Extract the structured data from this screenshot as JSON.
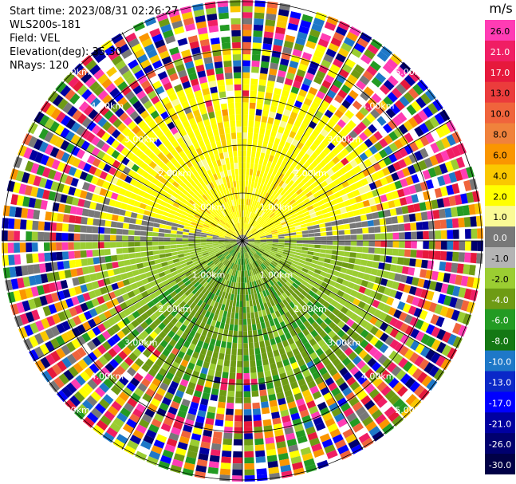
{
  "info": {
    "start_time": "Start time: 2023/08/31 02:26:27",
    "station": "WLS200s-181",
    "field": "Field: VEL",
    "elevation": "Elevation(deg): 35.30",
    "nrays": "NRays: 120"
  },
  "colorbar": {
    "unit": "m/s",
    "labels": [
      "26.0",
      "21.0",
      "17.0",
      "13.0",
      "10.0",
      "8.0",
      "6.0",
      "4.0",
      "2.0",
      "1.0",
      "0.0",
      "-1.0",
      "-2.0",
      "-4.0",
      "-6.0",
      "-8.0",
      "-10.0",
      "-13.0",
      "-17.0",
      "-21.0",
      "-26.0",
      "-30.0"
    ],
    "colors": [
      "#ff3cb4",
      "#f01e64",
      "#e6193c",
      "#eb3c3c",
      "#f0643c",
      "#f0823c",
      "#fa9600",
      "#fac800",
      "#ffff00",
      "#fafa96",
      "#787878",
      "#b4b4b4",
      "#9bcd32",
      "#6e9b14",
      "#239b23",
      "#147814",
      "#1e78c8",
      "#0a28c8",
      "#0000ff",
      "#0000a0",
      "#00006e",
      "#000046"
    ]
  },
  "range_labels": [
    "1.00km",
    "2.00km",
    "3.00km",
    "4.00km",
    "5.00km"
  ]
}
